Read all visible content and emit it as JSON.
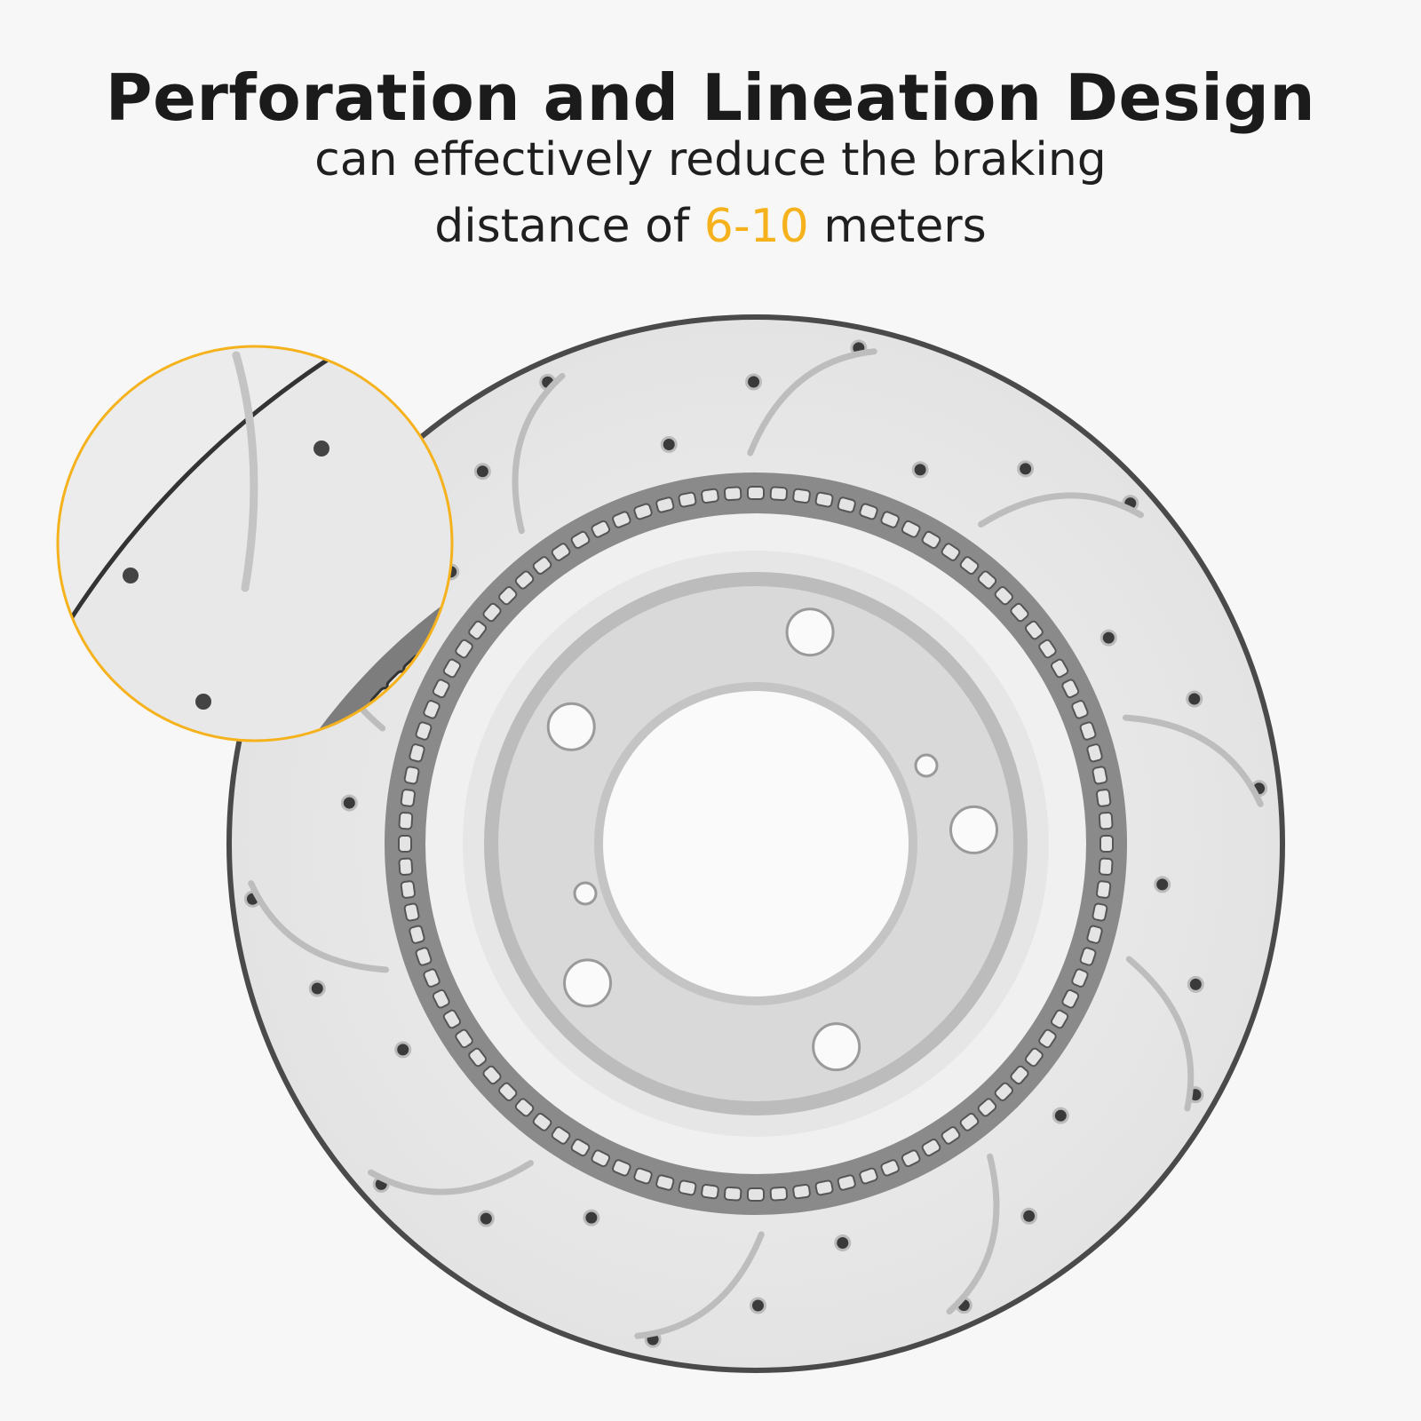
{
  "headline": "Perforation and Lineation Design",
  "subline1": "can effectively reduce the  braking",
  "subline2": {
    "prefix": "distance of ",
    "highlight": "6-10",
    "suffix": " meters"
  },
  "colors": {
    "highlight": "#F5B21C",
    "text": "#1b1b1b",
    "rotor": "#e9e9e9",
    "rotor_edge": "#555555"
  },
  "image": {
    "subject": "drilled-and-slotted-brake-rotor",
    "inset": "magnified-detail-callout"
  }
}
